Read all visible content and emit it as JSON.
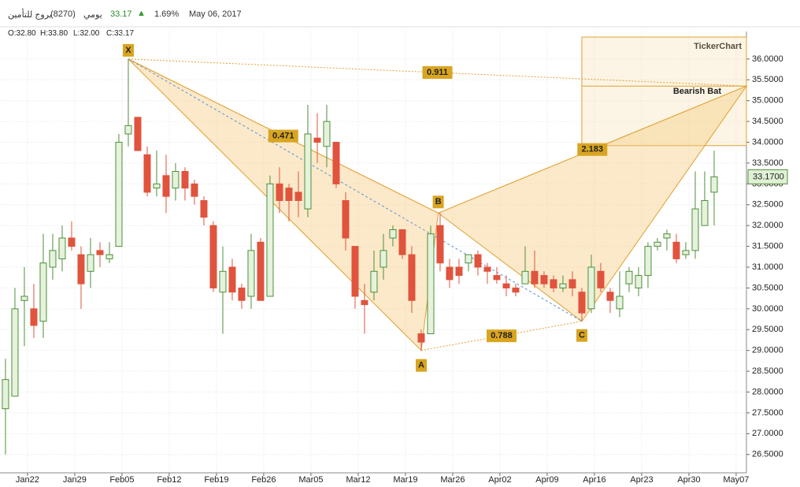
{
  "header": {
    "name": "بروج للتأمين",
    "code": "(8270)",
    "period": "يومي",
    "price": "33.17",
    "change": "1.69%",
    "date": "May 06, 2017",
    "ohlc": [
      "O:32.80",
      "H:33.80",
      "L:32.00",
      "C:33.17"
    ]
  },
  "chart_data": {
    "type": "candlestick",
    "watermark": "TickerChart",
    "open": [
      27.6,
      27.9,
      30.2,
      30.0,
      29.7,
      31.0,
      31.2,
      31.7,
      31.3,
      30.9,
      31.4,
      31.2,
      31.5,
      34.2,
      34.6,
      33.7,
      32.9,
      33.2,
      32.9,
      33.3,
      33.0,
      32.6,
      32.0,
      30.4,
      31.0,
      30.5,
      30.3,
      31.6,
      30.3,
      33.0,
      32.9,
      32.8,
      32.4,
      34.1,
      33.9,
      34.0,
      32.6,
      31.5,
      30.2,
      30.4,
      31.0,
      31.7,
      31.9,
      31.3,
      29.4,
      29.4,
      32.0,
      31.0,
      31.0,
      31.1,
      31.3,
      31.0,
      30.8,
      30.6,
      30.5,
      30.6,
      30.9,
      30.8,
      30.7,
      30.5,
      30.7,
      30.4,
      30.0,
      30.9,
      30.4,
      30.0,
      30.6,
      30.5,
      30.8,
      31.5,
      31.7,
      31.6,
      31.3,
      31.4,
      32.0,
      32.8
    ],
    "high": [
      28.8,
      30.5,
      31.0,
      30.6,
      31.8,
      31.8,
      32.0,
      32.1,
      31.5,
      31.7,
      31.6,
      31.6,
      34.2,
      36.0,
      34.6,
      33.9,
      33.8,
      33.7,
      33.5,
      33.4,
      33.1,
      32.7,
      32.1,
      31.5,
      31.2,
      30.6,
      31.8,
      31.7,
      33.2,
      33.4,
      33.0,
      33.3,
      34.9,
      34.7,
      34.9,
      34.0,
      32.8,
      31.5,
      30.6,
      31.4,
      31.8,
      32.0,
      31.9,
      31.5,
      29.5,
      32.0,
      32.3,
      31.2,
      31.2,
      31.3,
      31.4,
      31.1,
      31.0,
      30.8,
      30.6,
      31.5,
      31.4,
      30.9,
      30.8,
      30.8,
      30.9,
      30.5,
      31.3,
      31.1,
      30.5,
      30.9,
      31.0,
      31.0,
      31.6,
      31.7,
      31.9,
      31.8,
      31.6,
      33.3,
      33.3,
      33.8
    ],
    "low": [
      26.5,
      27.9,
      29.1,
      29.3,
      29.3,
      30.7,
      30.9,
      31.4,
      30.0,
      30.5,
      31.0,
      31.1,
      31.5,
      33.9,
      33.8,
      32.7,
      32.7,
      32.3,
      32.6,
      32.6,
      32.5,
      32.0,
      30.4,
      29.4,
      30.2,
      30.0,
      30.0,
      30.2,
      30.3,
      32.3,
      32.1,
      32.2,
      32.2,
      33.5,
      33.4,
      32.9,
      31.4,
      30.0,
      29.4,
      30.2,
      30.7,
      31.5,
      31.2,
      29.9,
      29.0,
      29.4,
      30.9,
      30.5,
      30.6,
      30.9,
      30.8,
      30.6,
      30.6,
      30.3,
      30.3,
      30.6,
      30.5,
      30.5,
      30.4,
      30.4,
      30.3,
      29.7,
      29.9,
      30.4,
      29.9,
      29.8,
      30.4,
      30.3,
      30.5,
      31.4,
      31.4,
      31.1,
      31.2,
      31.2,
      32.0,
      32.0
    ],
    "close": [
      28.3,
      30.0,
      30.3,
      29.6,
      31.1,
      31.4,
      31.7,
      31.5,
      30.6,
      31.3,
      31.3,
      31.3,
      34.0,
      34.4,
      33.8,
      32.8,
      33.0,
      32.7,
      33.3,
      32.9,
      32.7,
      32.2,
      30.5,
      30.9,
      30.4,
      30.2,
      31.4,
      30.2,
      33.0,
      32.6,
      32.6,
      32.6,
      34.2,
      34.0,
      34.5,
      33.0,
      31.7,
      30.3,
      30.1,
      30.9,
      31.4,
      31.9,
      31.3,
      30.2,
      29.2,
      31.8,
      31.1,
      30.7,
      30.8,
      31.3,
      31.0,
      30.9,
      30.7,
      30.5,
      30.4,
      30.9,
      30.6,
      30.6,
      30.5,
      30.6,
      30.5,
      29.9,
      31.0,
      30.5,
      30.2,
      30.3,
      30.9,
      30.8,
      31.5,
      31.6,
      31.8,
      31.2,
      31.4,
      32.4,
      32.6,
      33.17
    ],
    "up_color": "#4d8f3a",
    "down_color": "#e0533d",
    "xlim": [
      -0.58,
      78.42
    ],
    "xticks": [
      {
        "value": 2.33,
        "label": "Jan22"
      },
      {
        "value": 7.33,
        "label": "Jan29"
      },
      {
        "value": 12.33,
        "label": "Feb05"
      },
      {
        "value": 17.33,
        "label": "Feb12"
      },
      {
        "value": 22.33,
        "label": "Feb19"
      },
      {
        "value": 27.33,
        "label": "Feb26"
      },
      {
        "value": 32.33,
        "label": "Mar05"
      },
      {
        "value": 37.33,
        "label": "Mar12"
      },
      {
        "value": 42.33,
        "label": "Mar19"
      },
      {
        "value": 47.33,
        "label": "Mar26"
      },
      {
        "value": 52.33,
        "label": "Apr02"
      },
      {
        "value": 57.33,
        "label": "Apr09"
      },
      {
        "value": 62.33,
        "label": "Apr16"
      },
      {
        "value": 67.33,
        "label": "Apr23"
      },
      {
        "value": 72.33,
        "label": "Apr30"
      },
      {
        "value": 77.33,
        "label": "May07"
      }
    ],
    "ylim": [
      26.06,
      36.66
    ],
    "yticks": [
      {
        "value": 26.5,
        "label": "26.5000"
      },
      {
        "value": 27.0,
        "label": "27.0000"
      },
      {
        "value": 27.5,
        "label": "27.5000"
      },
      {
        "value": 28.0,
        "label": "28.0000"
      },
      {
        "value": 28.5,
        "label": "28.5000"
      },
      {
        "value": 29.0,
        "label": "29.0000"
      },
      {
        "value": 29.5,
        "label": "29.5000"
      },
      {
        "value": 30.0,
        "label": "30.0000"
      },
      {
        "value": 30.5,
        "label": "30.5000"
      },
      {
        "value": 31.0,
        "label": "31.0000"
      },
      {
        "value": 31.5,
        "label": "31.5000"
      },
      {
        "value": 32.0,
        "label": "32.0000"
      },
      {
        "value": 32.5,
        "label": "32.5000"
      },
      {
        "value": 33.0,
        "label": "33.0000"
      },
      {
        "value": 33.5,
        "label": "33.5000"
      },
      {
        "value": 34.0,
        "label": "34.0000"
      },
      {
        "value": 34.5,
        "label": "34.5000"
      },
      {
        "value": 35.0,
        "label": "35.0000"
      },
      {
        "value": 35.5,
        "label": "35.5000"
      },
      {
        "value": 36.0,
        "label": "36.0000"
      }
    ],
    "grid": true,
    "last_price": {
      "value": 33.17,
      "label": "33.1700"
    },
    "pattern": {
      "name": "Bearish Bat",
      "color": "#e0a030",
      "points": [
        {
          "label": "X",
          "x": 13,
          "y": 36.0
        },
        {
          "label": "A",
          "x": 44,
          "y": 29.0
        },
        {
          "label": "B",
          "x": 45.8,
          "y": 32.3
        },
        {
          "label": "C",
          "x": 61,
          "y": 29.7
        },
        {
          "x": 78.42,
          "y": 35.35
        }
      ],
      "ratios": [
        "0.911",
        "0.471",
        "0.788",
        "2.183"
      ],
      "prz_low": 33.92
    }
  }
}
